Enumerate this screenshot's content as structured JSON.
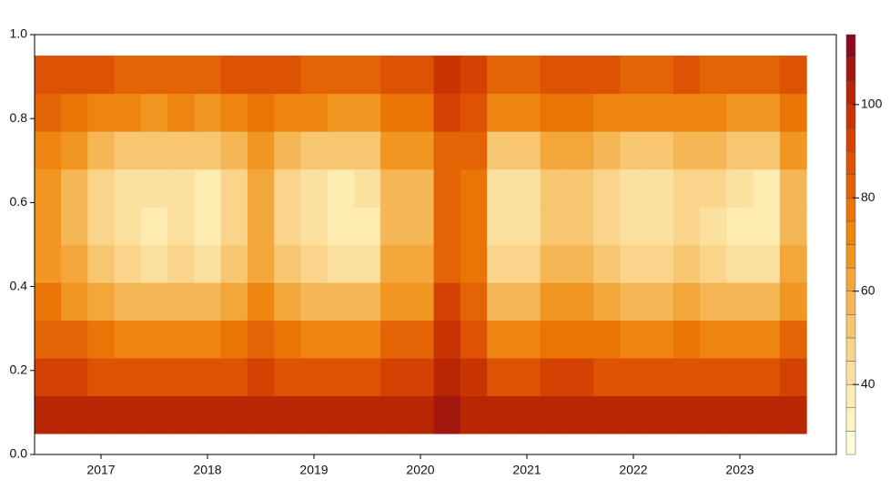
{
  "chart_data": {
    "type": "contourf",
    "x": [
      2016.5,
      2016.75,
      2017,
      2017.25,
      2017.5,
      2017.75,
      2018,
      2018.25,
      2018.5,
      2018.75,
      2019,
      2019.25,
      2019.5,
      2019.75,
      2020,
      2020.25,
      2020.5,
      2020.75,
      2021,
      2021.25,
      2021.5,
      2021.75,
      2022,
      2022.25,
      2022.5,
      2022.75,
      2023,
      2023.25,
      2023.5
    ],
    "y": [
      0.095,
      0.185,
      0.275,
      0.365,
      0.455,
      0.545,
      0.635,
      0.725,
      0.815,
      0.905
    ],
    "z": [
      [
        100,
        93,
        84,
        76,
        69,
        65,
        67,
        73,
        82,
        89
      ],
      [
        100,
        91,
        80,
        69,
        60,
        55,
        57,
        65,
        77,
        87
      ],
      [
        100,
        89,
        75,
        62,
        51,
        45,
        48,
        58,
        73,
        85
      ],
      [
        100,
        88,
        73,
        58,
        46,
        40,
        43,
        54,
        70,
        84
      ],
      [
        100,
        88,
        72,
        57,
        44,
        38,
        41,
        52,
        69,
        84
      ],
      [
        100,
        88,
        73,
        58,
        46,
        40,
        43,
        54,
        70,
        84
      ],
      [
        100,
        87,
        71,
        55,
        42,
        35,
        38,
        50,
        68,
        83
      ],
      [
        100,
        89,
        75,
        62,
        51,
        45,
        48,
        58,
        73,
        85
      ],
      [
        103,
        92,
        82,
        72,
        64,
        60,
        62,
        69,
        79,
        88
      ],
      [
        100,
        89,
        75,
        62,
        51,
        45,
        48,
        58,
        73,
        85
      ],
      [
        100,
        88,
        73,
        58,
        46,
        40,
        43,
        54,
        70,
        84
      ],
      [
        100,
        87,
        71,
        55,
        42,
        35,
        38,
        50,
        68,
        83
      ],
      [
        100,
        88,
        72,
        57,
        44,
        38,
        41,
        52,
        69,
        84
      ],
      [
        100,
        91,
        80,
        69,
        60,
        55,
        57,
        65,
        77,
        87
      ],
      [
        100,
        91,
        80,
        69,
        60,
        55,
        57,
        65,
        77,
        87
      ],
      [
        108,
        102,
        96,
        90,
        84,
        80,
        81,
        84,
        90,
        95
      ],
      [
        100,
        95,
        89,
        83,
        78,
        75,
        76,
        80,
        86,
        91
      ],
      [
        100,
        88,
        73,
        58,
        46,
        40,
        43,
        54,
        70,
        84
      ],
      [
        100,
        88,
        73,
        58,
        46,
        40,
        43,
        54,
        70,
        84
      ],
      [
        100,
        90,
        78,
        65,
        55,
        50,
        52,
        61,
        75,
        86
      ],
      [
        100,
        90,
        78,
        65,
        55,
        50,
        52,
        61,
        75,
        86
      ],
      [
        100,
        89,
        75,
        62,
        51,
        45,
        48,
        58,
        73,
        85
      ],
      [
        100,
        88,
        73,
        58,
        46,
        40,
        43,
        54,
        70,
        84
      ],
      [
        100,
        88,
        73,
        58,
        46,
        40,
        43,
        54,
        70,
        84
      ],
      [
        100,
        89,
        75,
        62,
        51,
        45,
        48,
        58,
        73,
        85
      ],
      [
        100,
        88,
        74,
        59,
        48,
        42,
        45,
        55,
        71,
        84
      ],
      [
        100,
        88,
        72,
        57,
        44,
        38,
        41,
        52,
        69,
        84
      ],
      [
        100,
        87,
        71,
        55,
        42,
        35,
        38,
        50,
        68,
        83
      ],
      [
        100,
        91,
        80,
        69,
        60,
        55,
        57,
        65,
        77,
        87
      ]
    ],
    "xlim": [
      2016.376,
      2023.906
    ],
    "ylim": [
      0,
      1
    ],
    "xticks": [
      2017,
      2018,
      2019,
      2020,
      2021,
      2022,
      2023
    ],
    "yticks": [
      {
        "value": 0,
        "label": "0.0"
      },
      0.2,
      0.4,
      0.6,
      0.8,
      {
        "value": 1,
        "label": "1.0"
      }
    ],
    "levels": [
      25,
      30,
      35,
      40,
      45,
      50,
      55,
      60,
      65,
      70,
      75,
      80,
      85,
      90,
      95,
      100,
      105,
      110,
      115
    ],
    "colors": [
      "#fffcd8",
      "#fff4c0",
      "#fdebb0",
      "#fbe0a0",
      "#f9d48a",
      "#f7c670",
      "#f5b656",
      "#f3a63a",
      "#f19620",
      "#ee8510",
      "#ea7406",
      "#e46304",
      "#dd5203",
      "#d44203",
      "#c83403",
      "#b82603",
      "#a2170e",
      "#8a0a1e"
    ],
    "colorbar_ticks": [
      40,
      60,
      80,
      100
    ]
  }
}
